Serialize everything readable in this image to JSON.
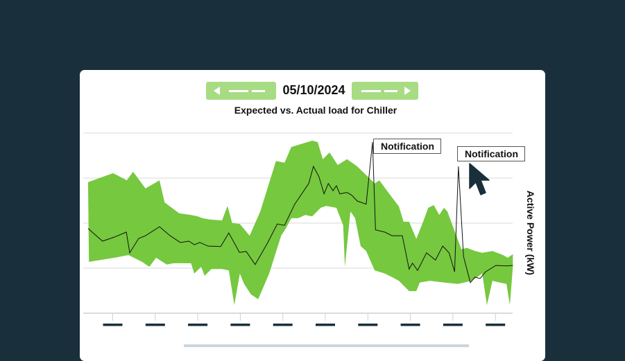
{
  "header": {
    "date": "05/10/2024",
    "prev_icon": "triangle-left-icon",
    "next_icon": "triangle-right-icon"
  },
  "notifications": [
    {
      "label": "Notification",
      "x": 7.11
    },
    {
      "label": "Notification",
      "x": 9.13
    }
  ],
  "colors": {
    "band": "#76c83f",
    "line": "#111111",
    "button": "#a8dc84",
    "background": "#1a2f3c",
    "tick_label": "#1a2f3c"
  },
  "chart_data": {
    "type": "area",
    "title": "Expected vs. Actual load for Chiller",
    "xlabel": "",
    "ylabel": "Active Power (kW)",
    "xlim": [
      0.31,
      10.41
    ],
    "ylim": [
      0,
      4
    ],
    "grid": true,
    "x_ticks": [
      1,
      2,
      3,
      4,
      5,
      6,
      7,
      8,
      9,
      10
    ],
    "x_tick_labels_redacted": true,
    "series": [
      {
        "name": "Expected upper",
        "points": [
          [
            0.42,
            2.91
          ],
          [
            1.01,
            3.11
          ],
          [
            1.33,
            2.95
          ],
          [
            1.48,
            3.14
          ],
          [
            1.77,
            2.77
          ],
          [
            2.1,
            2.95
          ],
          [
            2.22,
            2.46
          ],
          [
            2.56,
            2.22
          ],
          [
            2.84,
            2.18
          ],
          [
            3.0,
            2.15
          ],
          [
            3.11,
            2.11
          ],
          [
            3.28,
            2.08
          ],
          [
            3.57,
            2.06
          ],
          [
            3.7,
            2.38
          ],
          [
            3.81,
            2.0
          ],
          [
            3.99,
            1.98
          ],
          [
            4.22,
            1.72
          ],
          [
            4.47,
            2.26
          ],
          [
            4.84,
            3.38
          ],
          [
            5.04,
            3.34
          ],
          [
            5.2,
            3.69
          ],
          [
            5.69,
            3.83
          ],
          [
            5.82,
            3.8
          ],
          [
            5.94,
            3.42
          ],
          [
            6.1,
            3.57
          ],
          [
            6.29,
            3.29
          ],
          [
            6.51,
            3.42
          ],
          [
            6.75,
            3.26
          ],
          [
            7.0,
            3.03
          ],
          [
            7.16,
            2.88
          ],
          [
            7.27,
            2.95
          ],
          [
            7.45,
            2.72
          ],
          [
            7.73,
            2.37
          ],
          [
            7.84,
            2.03
          ],
          [
            7.97,
            2.03
          ],
          [
            8.14,
            1.65
          ],
          [
            8.3,
            2.03
          ],
          [
            8.42,
            2.34
          ],
          [
            8.55,
            2.4
          ],
          [
            8.68,
            2.18
          ],
          [
            8.79,
            2.34
          ],
          [
            8.87,
            2.26
          ],
          [
            9.05,
            1.8
          ],
          [
            9.2,
            1.42
          ],
          [
            9.33,
            1.45
          ],
          [
            9.52,
            1.38
          ],
          [
            9.69,
            1.34
          ],
          [
            9.93,
            1.38
          ],
          [
            10.18,
            1.29
          ],
          [
            10.29,
            1.23
          ],
          [
            10.41,
            1.31
          ]
        ]
      },
      {
        "name": "Expected lower",
        "points": [
          [
            0.44,
            1.14
          ],
          [
            1.04,
            1.23
          ],
          [
            1.37,
            1.29
          ],
          [
            1.69,
            1.14
          ],
          [
            1.86,
            1.03
          ],
          [
            2.02,
            1.23
          ],
          [
            2.27,
            1.08
          ],
          [
            2.43,
            1.11
          ],
          [
            2.84,
            1.11
          ],
          [
            2.92,
            0.88
          ],
          [
            3.08,
            1.03
          ],
          [
            3.16,
            0.83
          ],
          [
            3.32,
            0.98
          ],
          [
            3.57,
            0.98
          ],
          [
            3.73,
            0.95
          ],
          [
            3.86,
            0.18
          ],
          [
            3.99,
            0.88
          ],
          [
            4.09,
            0.65
          ],
          [
            4.25,
            0.42
          ],
          [
            4.42,
            0.31
          ],
          [
            4.68,
            0.88
          ],
          [
            4.96,
            1.72
          ],
          [
            5.07,
            1.88
          ],
          [
            5.2,
            2.11
          ],
          [
            5.36,
            2.11
          ],
          [
            5.53,
            2.18
          ],
          [
            5.69,
            2.15
          ],
          [
            5.89,
            2.34
          ],
          [
            6.02,
            2.38
          ],
          [
            6.26,
            2.34
          ],
          [
            6.42,
            1.95
          ],
          [
            6.46,
            1.03
          ],
          [
            6.59,
            2.26
          ],
          [
            6.7,
            2.11
          ],
          [
            6.83,
            1.49
          ],
          [
            6.96,
            1.38
          ],
          [
            7.16,
            0.95
          ],
          [
            7.4,
            0.88
          ],
          [
            7.57,
            0.8
          ],
          [
            7.73,
            0.72
          ],
          [
            7.97,
            0.49
          ],
          [
            8.14,
            0.49
          ],
          [
            8.22,
            0.68
          ],
          [
            8.46,
            0.72
          ],
          [
            8.79,
            0.68
          ],
          [
            9.12,
            0.65
          ],
          [
            9.44,
            0.72
          ],
          [
            9.69,
            0.88
          ],
          [
            9.8,
            0.18
          ],
          [
            9.93,
            0.72
          ],
          [
            10.1,
            0.68
          ],
          [
            10.26,
            0.65
          ],
          [
            10.34,
            0.18
          ],
          [
            10.41,
            1.03
          ]
        ]
      },
      {
        "name": "Actual",
        "points": [
          [
            0.42,
            1.88
          ],
          [
            0.76,
            1.6
          ],
          [
            1.04,
            1.69
          ],
          [
            1.32,
            1.8
          ],
          [
            1.4,
            1.34
          ],
          [
            1.61,
            1.66
          ],
          [
            1.77,
            1.72
          ],
          [
            2.1,
            1.92
          ],
          [
            2.35,
            1.72
          ],
          [
            2.59,
            1.57
          ],
          [
            2.79,
            1.6
          ],
          [
            2.92,
            1.52
          ],
          [
            3.05,
            1.57
          ],
          [
            3.24,
            1.49
          ],
          [
            3.54,
            1.48
          ],
          [
            3.73,
            1.78
          ],
          [
            3.98,
            1.35
          ],
          [
            4.14,
            1.37
          ],
          [
            4.35,
            1.08
          ],
          [
            4.63,
            1.54
          ],
          [
            4.87,
            1.98
          ],
          [
            5.04,
            1.95
          ],
          [
            5.28,
            2.42
          ],
          [
            5.61,
            2.88
          ],
          [
            5.72,
            3.26
          ],
          [
            5.85,
            3.03
          ],
          [
            5.97,
            2.65
          ],
          [
            6.07,
            2.88
          ],
          [
            6.18,
            2.72
          ],
          [
            6.26,
            2.83
          ],
          [
            6.34,
            2.65
          ],
          [
            6.51,
            2.68
          ],
          [
            6.62,
            2.62
          ],
          [
            6.75,
            2.49
          ],
          [
            6.96,
            2.42
          ],
          [
            7.11,
            3.8
          ],
          [
            7.18,
            1.85
          ],
          [
            7.4,
            1.8
          ],
          [
            7.57,
            1.72
          ],
          [
            7.81,
            1.72
          ],
          [
            7.97,
            0.98
          ],
          [
            8.05,
            1.11
          ],
          [
            8.17,
            0.95
          ],
          [
            8.38,
            1.34
          ],
          [
            8.59,
            1.18
          ],
          [
            8.76,
            1.49
          ],
          [
            8.91,
            1.34
          ],
          [
            9.04,
            0.92
          ],
          [
            9.13,
            3.26
          ],
          [
            9.25,
            1.26
          ],
          [
            9.41,
            0.68
          ],
          [
            9.52,
            0.8
          ],
          [
            9.64,
            0.77
          ],
          [
            9.77,
            0.92
          ],
          [
            10.01,
            1.06
          ],
          [
            10.26,
            1.05
          ],
          [
            10.41,
            1.06
          ]
        ]
      }
    ]
  }
}
